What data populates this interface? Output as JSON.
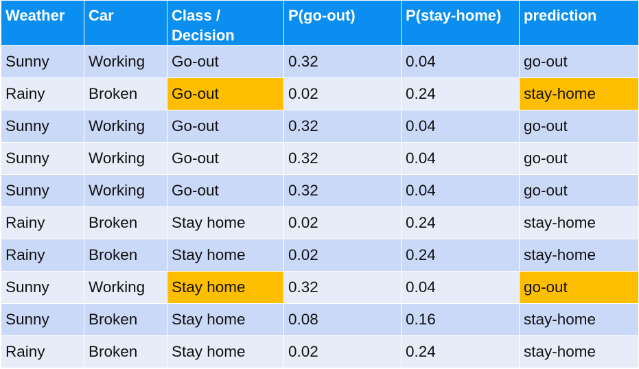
{
  "table": {
    "headers": [
      "Weather",
      "Car",
      "Class / Decision",
      "P(go-out)",
      "P(stay-home)",
      "prediction"
    ],
    "rows": [
      {
        "weather": "Sunny",
        "car": "Working",
        "class": "Go-out",
        "p_go_out": "0.32",
        "p_stay_home": "0.04",
        "prediction": "go-out",
        "highlighted": false
      },
      {
        "weather": "Rainy",
        "car": "Broken",
        "class": "Go-out",
        "p_go_out": "0.02",
        "p_stay_home": "0.24",
        "prediction": "stay-home",
        "highlighted": true
      },
      {
        "weather": "Sunny",
        "car": "Working",
        "class": "Go-out",
        "p_go_out": "0.32",
        "p_stay_home": "0.04",
        "prediction": "go-out",
        "highlighted": false
      },
      {
        "weather": "Sunny",
        "car": "Working",
        "class": "Go-out",
        "p_go_out": "0.32",
        "p_stay_home": "0.04",
        "prediction": "go-out",
        "highlighted": false
      },
      {
        "weather": "Sunny",
        "car": "Working",
        "class": "Go-out",
        "p_go_out": "0.32",
        "p_stay_home": "0.04",
        "prediction": "go-out",
        "highlighted": false
      },
      {
        "weather": "Rainy",
        "car": "Broken",
        "class": "Stay home",
        "p_go_out": "0.02",
        "p_stay_home": "0.24",
        "prediction": "stay-home",
        "highlighted": false
      },
      {
        "weather": "Rainy",
        "car": "Broken",
        "class": "Stay home",
        "p_go_out": "0.02",
        "p_stay_home": "0.24",
        "prediction": "stay-home",
        "highlighted": false
      },
      {
        "weather": "Sunny",
        "car": "Working",
        "class": "Stay home",
        "p_go_out": "0.32",
        "p_stay_home": "0.04",
        "prediction": "go-out",
        "highlighted": true
      },
      {
        "weather": "Sunny",
        "car": "Broken",
        "class": "Stay home",
        "p_go_out": "0.08",
        "p_stay_home": "0.16",
        "prediction": "stay-home",
        "highlighted": false
      },
      {
        "weather": "Rainy",
        "car": "Broken",
        "class": "Stay home",
        "p_go_out": "0.02",
        "p_stay_home": "0.24",
        "prediction": "stay-home",
        "highlighted": false
      }
    ]
  },
  "colors": {
    "header_bg": "#0a8ef0",
    "row_dark": "#cbd9f8",
    "row_light": "#e6ecf8",
    "highlight": "#ffbe00"
  }
}
